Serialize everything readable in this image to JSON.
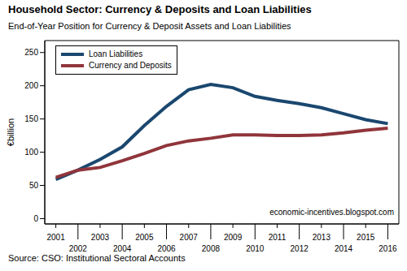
{
  "chart_data": {
    "type": "line",
    "title": "Household Sector: Currency & Deposits and Loan Liabilities",
    "subtitle": "End-of-Year Position for Currency & Deposit Assets and Loan Liabilities",
    "y_label": "€billion",
    "annotation": "economic-incentives.blogspot.com",
    "source": "Source: CSO: Institutional Sectoral Accounts",
    "x": [
      2001,
      2002,
      2003,
      2004,
      2005,
      2006,
      2007,
      2008,
      2009,
      2010,
      2011,
      2012,
      2013,
      2014,
      2015,
      2016
    ],
    "series": [
      {
        "name": "Loan Liabilities",
        "color": "#1a476f",
        "values": [
          59,
          73,
          89,
          108,
          140,
          169,
          194,
          202,
          197,
          184,
          178,
          173,
          167,
          158,
          149,
          143
        ]
      },
      {
        "name": "Currency and Deposits",
        "color": "#90353b",
        "values": [
          62,
          73,
          77,
          87,
          98,
          110,
          117,
          121,
          126,
          126,
          125,
          125,
          126,
          129,
          133,
          136
        ]
      }
    ],
    "xlim": [
      2000.5,
      2016.5
    ],
    "xticks": [
      2001,
      2002,
      2003,
      2004,
      2005,
      2006,
      2007,
      2008,
      2009,
      2010,
      2011,
      2012,
      2013,
      2014,
      2015,
      2016
    ],
    "ylim": [
      -8,
      268
    ],
    "yticks": [
      0,
      50,
      100,
      150,
      200,
      250
    ],
    "grid": false,
    "legend": "top-left"
  }
}
